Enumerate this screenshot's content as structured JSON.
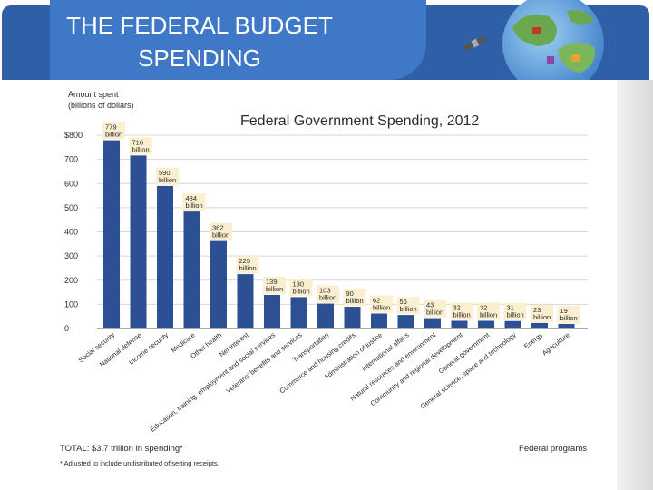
{
  "slide": {
    "title": "THE FEDERAL BUDGET\nSPENDING",
    "header_color": "#3f78c7"
  },
  "decor": {
    "globe_icon": "globe-satellite-icon"
  },
  "chart_data": {
    "type": "bar",
    "title": "Federal Government Spending, 2012",
    "ylabel": "Amount spent\n(billions of dollars)",
    "xlabel": "Federal programs",
    "ylim": [
      0,
      800
    ],
    "yticks": [
      "0",
      "100",
      "200",
      "300",
      "400",
      "500",
      "600",
      "700",
      "$800"
    ],
    "grid": true,
    "bar_color": "#2d4f94",
    "categories": [
      "Social security",
      "National defense",
      "Income security",
      "Medicare",
      "Other health",
      "Net interest",
      "Education, training, employment and social services",
      "Veterans' benefits and services",
      "Transportation",
      "Commerce and housing credits",
      "Administration of justice",
      "International affairs",
      "Natural resources and environment",
      "Community and regional development",
      "General government",
      "General science, space and technology",
      "Energy",
      "Agriculture"
    ],
    "values": [
      779,
      716,
      590,
      484,
      362,
      225,
      139,
      130,
      103,
      90,
      62,
      56,
      43,
      32,
      32,
      31,
      23,
      19
    ],
    "data_labels": [
      "779\nbillion",
      "716\nbillion",
      "590\nbillion",
      "484\nbillion",
      "362\nbillion",
      "225\nbillion",
      "139\nbillion",
      "130\nbillion",
      "103\nbillion",
      "90\nbillion",
      "62\nbillion",
      "56\nbillion",
      "43\nbillion",
      "32\nbillion",
      "32\nbillion",
      "31\nbillion",
      "23\nbillion",
      "19\nbillion"
    ],
    "label_color": "#fbefcf",
    "footnote_total": "TOTAL: $3.7 trillion in spending*",
    "footnote_adjusted": "* Adjusted to include undistributed offsetting receipts."
  }
}
